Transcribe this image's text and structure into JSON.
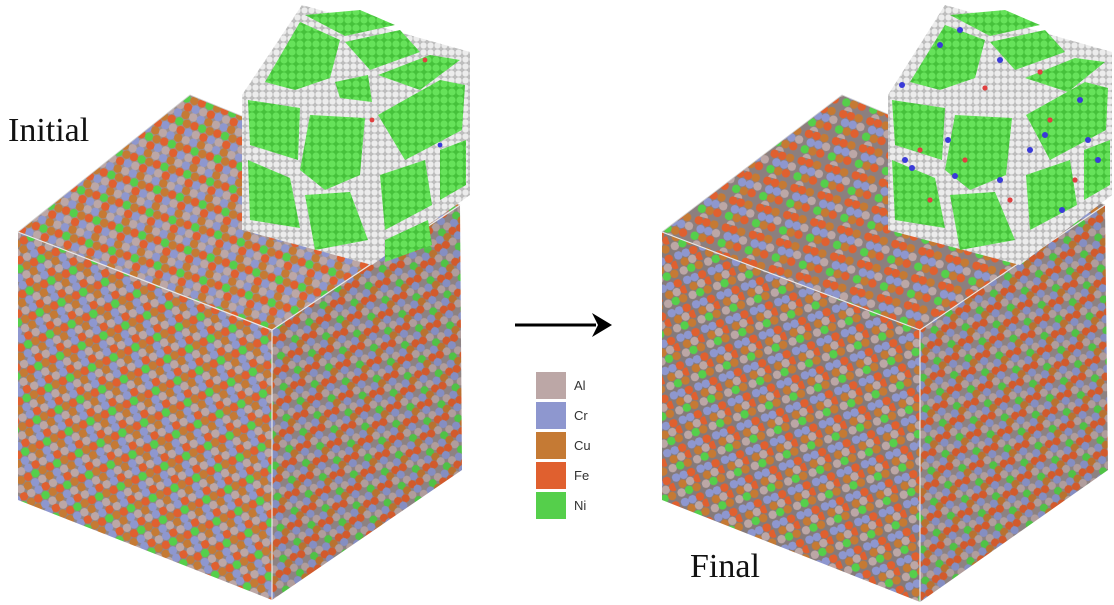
{
  "labels": {
    "initial": "Initial",
    "final": "Final"
  },
  "legend": [
    {
      "element": "Al",
      "color": "#bca7a6"
    },
    {
      "element": "Cr",
      "color": "#8e97cf"
    },
    {
      "element": "Cu",
      "color": "#c57a34"
    },
    {
      "element": "Fe",
      "color": "#e0602f"
    },
    {
      "element": "Ni",
      "color": "#55cf4b"
    }
  ],
  "arrow": {
    "direction": "right",
    "color": "#000000"
  },
  "gb_colors": {
    "grain": "#58d94a",
    "boundary": "#dcdcdc",
    "cr_atom": "#3a3ad8",
    "fe_atom": "#e04040"
  }
}
